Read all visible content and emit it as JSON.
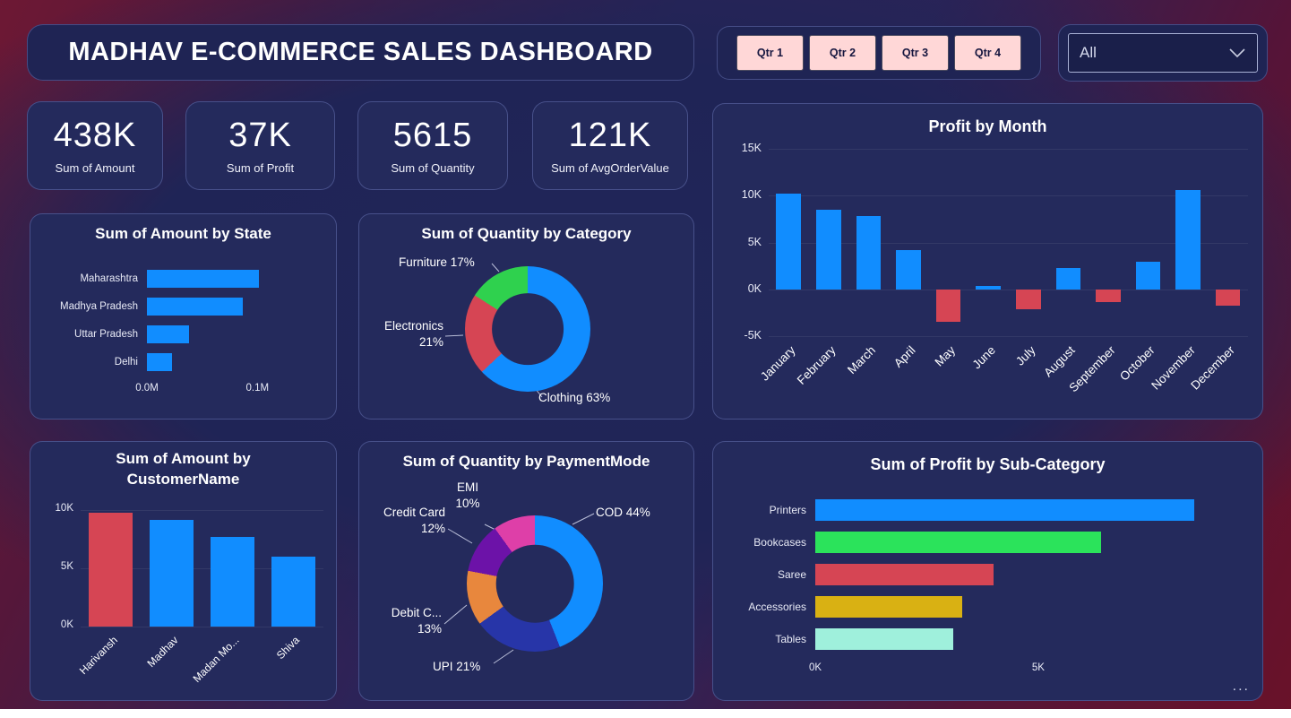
{
  "header": {
    "title": "MADHAV E-COMMERCE SALES DASHBOARD",
    "quarter_buttons": [
      "Qtr 1",
      "Qtr 2",
      "Qtr 3",
      "Qtr 4"
    ],
    "filter_dropdown": {
      "value": "All"
    }
  },
  "kpis": [
    {
      "value": "438K",
      "label": "Sum of Amount"
    },
    {
      "value": "37K",
      "label": "Sum of Profit"
    },
    {
      "value": "5615",
      "label": "Sum of Quantity"
    },
    {
      "value": "121K",
      "label": "Sum of AvgOrderValue"
    }
  ],
  "colors": {
    "positive": "#118DFF",
    "negative": "#D64554",
    "card_background": "#242a5c",
    "button_pink": "#FFD7D7"
  },
  "chart_data": [
    {
      "id": "amount_by_state",
      "type": "bar",
      "orientation": "horizontal",
      "title": "Sum of Amount by State",
      "categories": [
        "Maharashtra",
        "Madhya Pradesh",
        "Uttar Pradesh",
        "Delhi"
      ],
      "values": [
        0.101,
        0.087,
        0.038,
        0.023
      ],
      "unit": "M",
      "bar_color": "#118DFF",
      "xticks": [
        "0.0M",
        "0.1M"
      ],
      "xtick_values": [
        0,
        0.1
      ],
      "xlim": [
        0,
        0.15
      ]
    },
    {
      "id": "quantity_by_category",
      "type": "pie",
      "title": "Sum of Quantity by Category",
      "slices": [
        {
          "label": "Clothing",
          "pct": 63,
          "color": "#118DFF"
        },
        {
          "label": "Electronics",
          "pct": 21,
          "color": "#D64554"
        },
        {
          "label": "Furniture",
          "pct": 17,
          "color": "#2FD14E"
        }
      ],
      "callouts": [
        {
          "lines": [
            "Furniture 17%"
          ]
        },
        {
          "lines": [
            "Electronics",
            "21%"
          ]
        },
        {
          "lines": [
            "Clothing 63%"
          ]
        }
      ]
    },
    {
      "id": "profit_by_month",
      "type": "column",
      "title": "Profit by Month",
      "categories": [
        "January",
        "February",
        "March",
        "April",
        "May",
        "June",
        "July",
        "August",
        "September",
        "October",
        "November",
        "December"
      ],
      "values": [
        10.2,
        8.5,
        7.8,
        4.2,
        -3.5,
        0.4,
        -2.1,
        2.3,
        -1.4,
        2.9,
        10.6,
        -1.7
      ],
      "unit": "K",
      "positive_color": "#118DFF",
      "negative_color": "#D64554",
      "yticks": [
        "15K",
        "10K",
        "5K",
        "0K",
        "-5K"
      ],
      "ytick_values": [
        15,
        10,
        5,
        0,
        -5
      ],
      "ylim": [
        -5,
        15
      ]
    },
    {
      "id": "amount_by_customer",
      "type": "column",
      "title": "Sum of Amount by CustomerName",
      "categories": [
        "Harivansh",
        "Madhav",
        "Madan Mo...",
        "Shiva"
      ],
      "values": [
        9.8,
        9.2,
        7.7,
        6.0
      ],
      "unit": "K",
      "colors": [
        "#D64554",
        "#118DFF",
        "#118DFF",
        "#118DFF"
      ],
      "yticks": [
        "10K",
        "5K",
        "0K"
      ],
      "ytick_values": [
        10,
        5,
        0
      ],
      "ylim": [
        0,
        10.5
      ]
    },
    {
      "id": "quantity_by_paymentmode",
      "type": "pie",
      "title": "Sum of Quantity by PaymentMode",
      "slices": [
        {
          "label": "COD",
          "pct": 44,
          "color": "#118DFF"
        },
        {
          "label": "UPI",
          "pct": 21,
          "color": "#2735A8"
        },
        {
          "label": "Debit Card",
          "pct": 13,
          "color": "#E8873D"
        },
        {
          "label": "Credit Card",
          "pct": 12,
          "color": "#6C12A8"
        },
        {
          "label": "EMI",
          "pct": 10,
          "color": "#DE3FA8"
        }
      ],
      "callouts": [
        {
          "lines": [
            "EMI",
            "10%"
          ]
        },
        {
          "lines": [
            "Credit Card",
            "12%"
          ]
        },
        {
          "lines": [
            "COD 44%"
          ]
        },
        {
          "lines": [
            "Debit C...",
            "13%"
          ]
        },
        {
          "lines": [
            "UPI 21%"
          ]
        }
      ]
    },
    {
      "id": "profit_by_subcategory",
      "type": "bar",
      "orientation": "horizontal",
      "title": "Sum of Profit by Sub-Category",
      "categories": [
        "Printers",
        "Bookcases",
        "Saree",
        "Accessories",
        "Tables"
      ],
      "values": [
        8.5,
        6.4,
        4.0,
        3.3,
        3.1
      ],
      "unit": "K",
      "colors": [
        "#118DFF",
        "#2BE35B",
        "#D64554",
        "#D9B113",
        "#9FF0DC"
      ],
      "xticks": [
        "0K",
        "5K"
      ],
      "xtick_values": [
        0,
        5
      ],
      "xlim": [
        0,
        9.5
      ],
      "more_options": "..."
    }
  ]
}
